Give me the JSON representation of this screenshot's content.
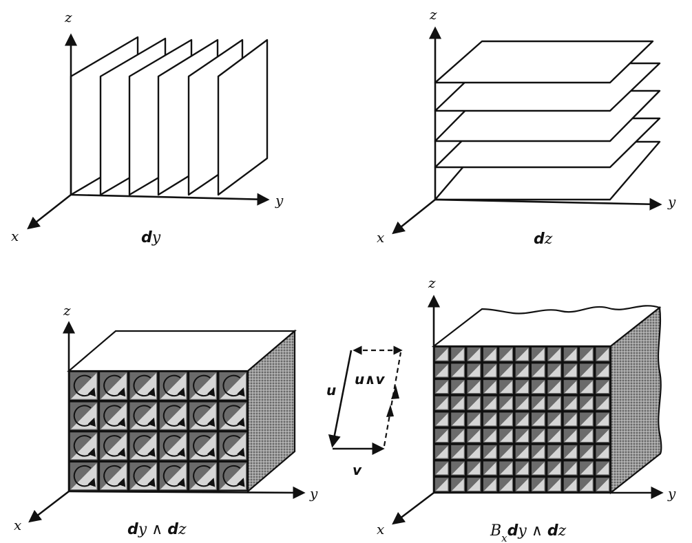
{
  "panels": {
    "top_left": {
      "caption_bold": "d",
      "caption_rest": "y",
      "axes": {
        "x": "x",
        "y": "y",
        "z": "z"
      }
    },
    "top_right": {
      "caption_bold": "d",
      "caption_rest": "z",
      "axes": {
        "x": "x",
        "y": "y",
        "z": "z"
      }
    },
    "bottom_left": {
      "caption_d1": "d",
      "caption_v1": "y",
      "caption_wedge": " ∧ ",
      "caption_d2": "d",
      "caption_v2": "z",
      "axes": {
        "x": "x",
        "y": "y",
        "z": "z"
      }
    },
    "bottom_right": {
      "caption_B": "B",
      "caption_sub": "x",
      "caption_d1": "d",
      "caption_v1": "y",
      "caption_wedge": " ∧ ",
      "caption_d2": "d",
      "caption_v2": "z",
      "axes": {
        "x": "x",
        "y": "y",
        "z": "z"
      }
    }
  },
  "parallelogram": {
    "u": "u",
    "v": "v",
    "u_wedge_v": "u∧v"
  },
  "colors": {
    "ink": "#111111",
    "cell_dark": "#6b6b6b",
    "cell_light": "#d6d6d6",
    "stipple": "#9a9a9a"
  }
}
